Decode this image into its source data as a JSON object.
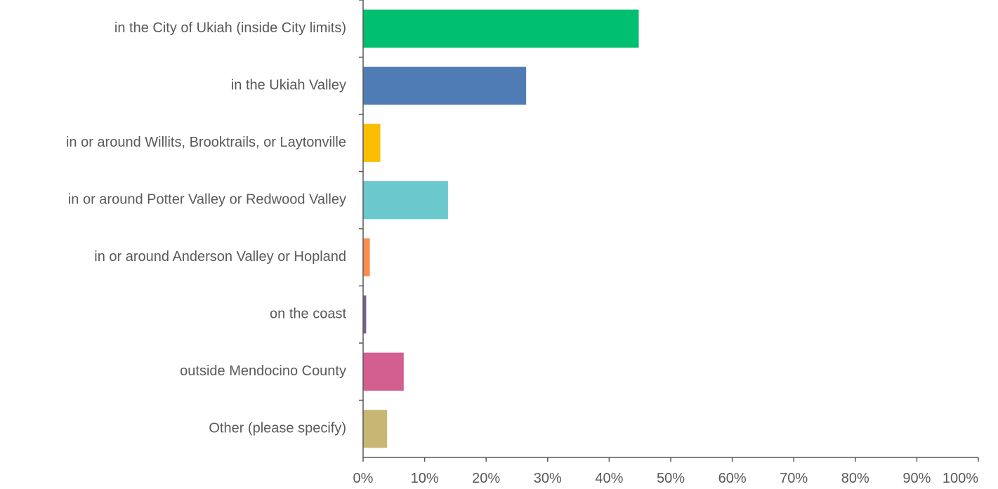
{
  "chart_data": {
    "type": "bar",
    "orientation": "horizontal",
    "title": "",
    "xlabel": "",
    "ylabel": "",
    "categories": [
      "in the City of Ukiah (inside City limits)",
      "in the Ukiah Valley",
      "in or around Willits, Brooktrails, or Laytonville",
      "in or around Potter Valley or Redwood Valley",
      "in or around Anderson Valley or Hopland",
      "on the coast",
      "outside Mendocino County",
      "Other (please specify)"
    ],
    "values": [
      44.8,
      26.5,
      2.8,
      13.8,
      1.1,
      0.5,
      6.6,
      3.9
    ],
    "value_unit": "%",
    "xlim": [
      0,
      100
    ],
    "x_ticks": [
      0,
      10,
      20,
      30,
      40,
      50,
      60,
      70,
      80,
      90,
      100
    ],
    "x_tick_labels": [
      "0%",
      "10%",
      "20%",
      "30%",
      "40%",
      "50%",
      "60%",
      "70%",
      "80%",
      "90%",
      "100%"
    ],
    "grid": false,
    "legend": "none",
    "colors": [
      "#00bf6f",
      "#507cb6",
      "#f9be00",
      "#6bc8cd",
      "#ff8b4f",
      "#7d5e90",
      "#d25f90",
      "#c8b675"
    ]
  }
}
